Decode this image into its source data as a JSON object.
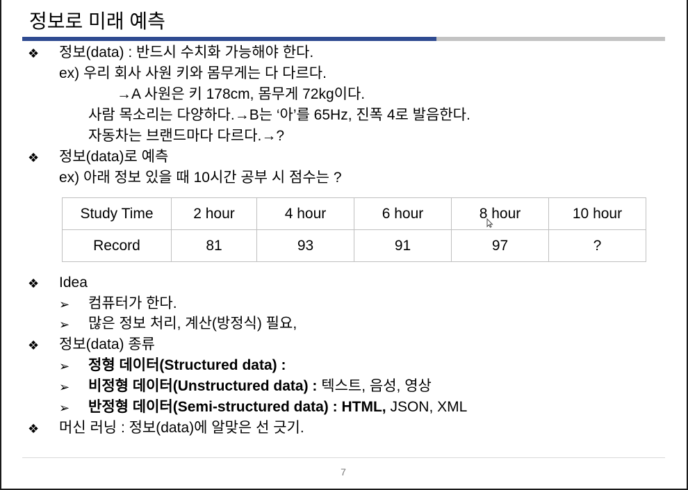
{
  "title": "정보로 미래 예측",
  "bullet_glyph": "❖",
  "arrow_glyph": "➢",
  "section1": {
    "heading": "정보(data) : 반드시 수치화 가능해야 한다.",
    "ex": "ex) 우리 회사 사원 키와 몸무게는 다 다르다.",
    "line_a": "→A 사원은 키 178cm, 몸무게 72kg이다.",
    "line_b": "사람 목소리는 다양하다.→B는 ‘아’를 65Hz, 진폭 4로 발음한다.",
    "line_c": "자동차는 브랜드마다 다르다.→?"
  },
  "section2": {
    "heading": "정보(data)로 예측",
    "ex": "ex) 아래 정보 있을 때 10시간 공부 시 점수는 ?"
  },
  "table": {
    "rows": [
      [
        "Study Time",
        "2 hour",
        "4 hour",
        "6 hour",
        "8 hour",
        "10 hour"
      ],
      [
        "Record",
        "81",
        "93",
        "91",
        "97",
        "?"
      ]
    ]
  },
  "section3": {
    "heading": "Idea",
    "items": [
      "컴퓨터가 한다.",
      "많은 정보 처리, 계산(방정식) 필요,"
    ]
  },
  "section4": {
    "heading": "정보(data) 종류",
    "item1_bold": "정형 데이터(Structured data) :",
    "item2_bold": "비정형 데이터(Unstructured data) :",
    "item2_rest": " 텍스트, 음성, 영상",
    "item3_bold": "반정형 데이터(Semi-structured data) : HTML,",
    "item3_rest": " JSON, XML"
  },
  "section5": {
    "heading": "머신 러닝 : 정보(data)에 알맞은 선 긋기."
  },
  "page_number": "7"
}
